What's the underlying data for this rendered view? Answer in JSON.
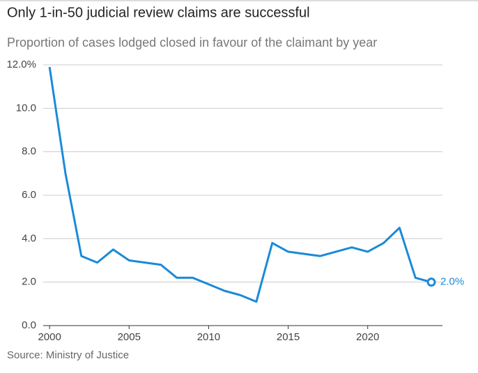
{
  "chart_data": {
    "type": "line",
    "title": "Only 1-in-50 judicial review claims are successful",
    "subtitle": "Proportion of cases lodged closed in favour of the claimant by year",
    "source": "Source: Ministry of Justice",
    "x": [
      2000,
      2001,
      2002,
      2003,
      2004,
      2005,
      2006,
      2007,
      2008,
      2009,
      2010,
      2011,
      2012,
      2013,
      2014,
      2015,
      2016,
      2017,
      2018,
      2019,
      2020,
      2021,
      2022,
      2023,
      2024
    ],
    "series": [
      {
        "name": "Proportion",
        "color": "#1a8ad8",
        "values": [
          11.9,
          7.0,
          3.2,
          2.9,
          3.5,
          3.0,
          2.9,
          2.8,
          2.2,
          2.2,
          1.9,
          1.6,
          1.4,
          1.1,
          3.8,
          3.4,
          3.3,
          3.2,
          3.4,
          3.6,
          3.4,
          3.8,
          4.5,
          2.2,
          2.0
        ],
        "value_labels": [
          null,
          null,
          null,
          null,
          null,
          null,
          null,
          null,
          null,
          null,
          null,
          null,
          null,
          null,
          null,
          null,
          null,
          null,
          null,
          null,
          null,
          null,
          null,
          null,
          "2.0%"
        ]
      }
    ],
    "xlim": [
      1999.6,
      2024.7
    ],
    "xticks": [
      2000,
      2005,
      2010,
      2015,
      2020
    ],
    "ylim": [
      0,
      12
    ],
    "yticks": [
      {
        "value": 0,
        "label": "0.0"
      },
      {
        "value": 2,
        "label": "2.0"
      },
      {
        "value": 4,
        "label": "4.0"
      },
      {
        "value": 6,
        "label": "6.0"
      },
      {
        "value": 8,
        "label": "8.0"
      },
      {
        "value": 10,
        "label": "10.0"
      },
      {
        "value": 12,
        "label": "12.0%"
      }
    ],
    "grid": true
  }
}
